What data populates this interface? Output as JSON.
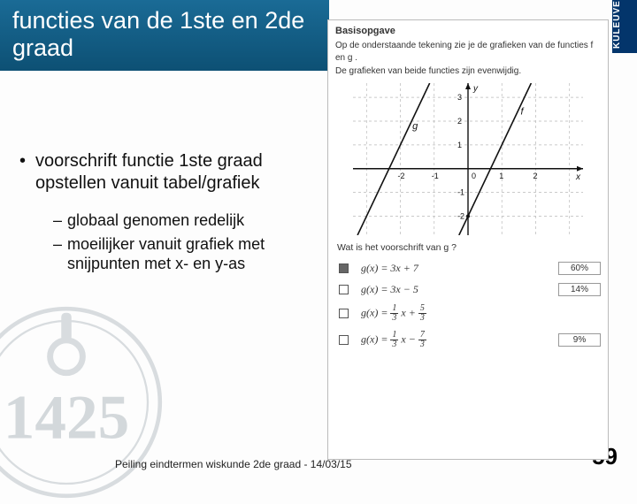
{
  "brand": "KULEUVE",
  "title": "functies van de 1ste en 2de graad",
  "bullet_main": "voorschrift functie 1ste graad opstellen vanuit tabel/grafiek",
  "sub_items": [
    "globaal genomen redelijk",
    "moeilijker vanuit grafiek met snijpunten met x- en y-as"
  ],
  "footer_text": "Peiling eindtermen wiskunde 2de graad - 14/03/15",
  "page_number": "59",
  "exercise": {
    "heading": "Basisopgave",
    "intro1": "Op de onderstaande tekening zie je de grafieken van de functies  f  en  g .",
    "intro2": "De grafieken van beide functies zijn evenwijdig.",
    "question": "Wat is het voorschrift van  g ?",
    "options": [
      {
        "formula_html": "g(x) = 3x + 7",
        "pct": "60%",
        "filled": true
      },
      {
        "formula_html": "g(x) = 3x − 5",
        "pct": "14%",
        "filled": false
      },
      {
        "formula_html": "g(x) = <span class='frac'><span class='n'>1</span><span class='d'>3</span></span> x + <span class='frac'><span class='n'>5</span><span class='d'>3</span></span>",
        "pct": "",
        "filled": false
      },
      {
        "formula_html": "g(x) = <span class='frac'><span class='n'>1</span><span class='d'>3</span></span> x − <span class='frac'><span class='n'>7</span><span class='d'>3</span></span>",
        "pct": "9%",
        "filled": false
      }
    ],
    "graph": {
      "x_ticks": [
        -2,
        -1,
        0,
        1,
        2
      ],
      "y_ticks": [
        -2,
        -1,
        1,
        2,
        3
      ],
      "x_range": [
        -3.4,
        3.4
      ],
      "y_range": [
        -2.8,
        3.6
      ],
      "line_f": {
        "slope": 3,
        "intercept": -2,
        "label": "f"
      },
      "line_g": {
        "slope": 3,
        "intercept": 7,
        "label": "g"
      },
      "axis_color": "#111111",
      "grid_color": "#b8b8b8",
      "line_color": "#111111",
      "background": "#ffffff"
    }
  },
  "seal_digits": "1425",
  "colors": {
    "title_bg_top": "#1a6b96",
    "title_bg_bottom": "#0d5074",
    "brand_bg": "#03356b"
  }
}
